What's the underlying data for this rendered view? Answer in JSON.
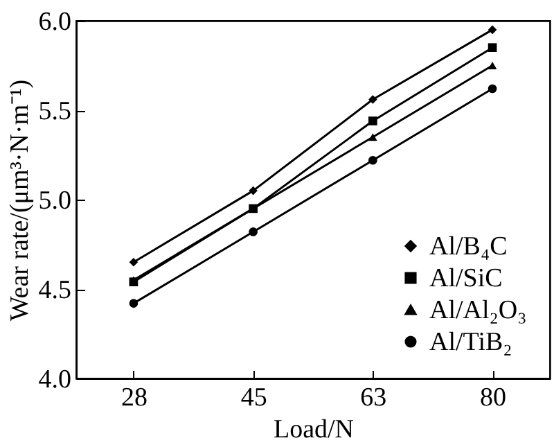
{
  "chart_data": {
    "type": "line",
    "xlabel": "Load/N",
    "ylabel": "Wear rate/(μm³·N·m⁻¹)",
    "categories": [
      "28",
      "45",
      "63",
      "80"
    ],
    "ylim": [
      4.0,
      6.0
    ],
    "yticks": [
      {
        "value": 4.0,
        "label": "4.0"
      },
      {
        "value": 4.5,
        "label": "4.5"
      },
      {
        "value": 5.0,
        "label": "5.0"
      },
      {
        "value": 5.5,
        "label": "5.5"
      },
      {
        "value": 6.0,
        "label": "6.0"
      }
    ],
    "legend": "bottom right",
    "series": [
      {
        "name": "Al/B₄C",
        "color": "#000000",
        "marker": "diamond",
        "values": [
          4.65,
          5.05,
          5.56,
          5.95
        ]
      },
      {
        "name": "Al/SiC",
        "color": "#000000",
        "marker": "square",
        "values": [
          4.54,
          4.95,
          5.44,
          5.85
        ]
      },
      {
        "name": "Al/Al₂O₃",
        "color": "#000000",
        "marker": "triangle",
        "values": [
          4.55,
          4.95,
          5.35,
          5.75
        ]
      },
      {
        "name": "Al/TiB₂",
        "color": "#000000",
        "marker": "circle",
        "values": [
          4.42,
          4.82,
          5.22,
          5.62
        ]
      }
    ]
  }
}
